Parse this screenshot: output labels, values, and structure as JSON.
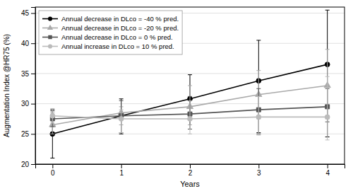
{
  "chart_data": {
    "type": "line",
    "xlabel": "Years",
    "ylabel": "Augmentation Index @HR75 (%)",
    "x": [
      0,
      1,
      2,
      3,
      4
    ],
    "series": [
      {
        "name": "Annual decrease in DLco = -40 % pred.",
        "color": "#000000",
        "marker": "circle",
        "values": [
          25.0,
          28.0,
          30.8,
          33.8,
          36.5
        ],
        "ci_lower": [
          21.0,
          25.0,
          26.5,
          25.2,
          24.5
        ],
        "ci_upper": [
          29.0,
          30.8,
          34.8,
          40.5,
          45.5
        ]
      },
      {
        "name": "Annual decrease in DLco = -20 % pred.",
        "color": "#aaaaaa",
        "marker": "triangle",
        "values": [
          26.5,
          28.5,
          29.5,
          31.5,
          33.0
        ],
        "ci_lower": [
          25.0,
          26.5,
          26.5,
          27.5,
          27.5
        ],
        "ci_upper": [
          28.5,
          29.5,
          33.0,
          35.5,
          39.0
        ]
      },
      {
        "name": "Annual decrease in DLco = 0 % pred.",
        "color": "#555555",
        "marker": "square",
        "values": [
          27.5,
          28.0,
          28.3,
          29.0,
          29.5
        ],
        "ci_lower": [
          26.2,
          25.2,
          25.8,
          25.0,
          27.0
        ],
        "ci_upper": [
          28.8,
          30.5,
          31.2,
          32.5,
          32.5
        ]
      },
      {
        "name": "Annual increase in DLco = 10 % pred.",
        "color": "#bbbbbb",
        "marker": "circle",
        "values": [
          28.0,
          27.5,
          27.5,
          27.8,
          27.8
        ],
        "ci_lower": [
          26.8,
          25.2,
          25.0,
          24.8,
          24.0
        ],
        "ci_upper": [
          29.2,
          29.0,
          30.5,
          31.2,
          34.5
        ]
      }
    ],
    "xlim": [
      -0.25,
      4.25
    ],
    "ylim": [
      20,
      46
    ],
    "xticks": [
      0,
      1,
      2,
      3,
      4
    ],
    "yticks": [
      20,
      25,
      30,
      35,
      40,
      45
    ],
    "grid": true,
    "legend": "upper-left"
  }
}
